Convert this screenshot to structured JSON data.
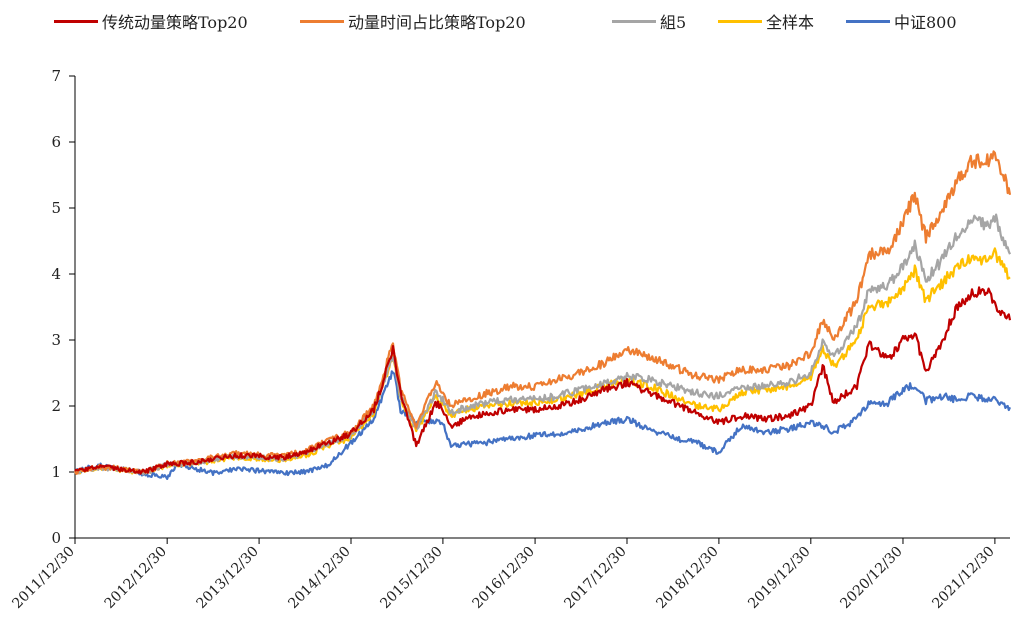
{
  "chart_data": {
    "type": "line",
    "title": "",
    "xlabel": "",
    "ylabel": "",
    "x_start": "2011/12/30",
    "x_end": "2022/02/28",
    "ylim": [
      0,
      7
    ],
    "yticks": [
      0,
      1,
      2,
      3,
      4,
      5,
      6,
      7
    ],
    "xticks": [
      "2011/12/30",
      "2012/12/30",
      "2013/12/30",
      "2014/12/30",
      "2015/12/30",
      "2016/12/30",
      "2017/12/30",
      "2018/12/30",
      "2019/12/30",
      "2020/12/30",
      "2021/12/30"
    ],
    "legend_position": "top",
    "grid": false,
    "series": [
      {
        "name": "传统动量策略Top20",
        "color": "#c00000",
        "points": [
          [
            "2011/12/30",
            1.0
          ],
          [
            "2012/03/31",
            1.08
          ],
          [
            "2012/06/30",
            1.04
          ],
          [
            "2012/09/30",
            1.0
          ],
          [
            "2012/12/30",
            1.12
          ],
          [
            "2013/03/31",
            1.14
          ],
          [
            "2013/06/30",
            1.2
          ],
          [
            "2013/09/30",
            1.25
          ],
          [
            "2013/12/30",
            1.24
          ],
          [
            "2014/03/31",
            1.22
          ],
          [
            "2014/06/30",
            1.3
          ],
          [
            "2014/09/30",
            1.45
          ],
          [
            "2014/12/30",
            1.58
          ],
          [
            "2015/03/31",
            1.95
          ],
          [
            "2015/06/15",
            2.85
          ],
          [
            "2015/07/15",
            2.2
          ],
          [
            "2015/09/15",
            1.4
          ],
          [
            "2015/11/30",
            2.05
          ],
          [
            "2015/12/30",
            1.95
          ],
          [
            "2016/01/31",
            1.7
          ],
          [
            "2016/03/31",
            1.8
          ],
          [
            "2016/06/30",
            1.9
          ],
          [
            "2016/09/30",
            1.95
          ],
          [
            "2016/12/30",
            1.95
          ],
          [
            "2017/03/31",
            2.0
          ],
          [
            "2017/06/30",
            2.1
          ],
          [
            "2017/09/30",
            2.25
          ],
          [
            "2017/12/30",
            2.35
          ],
          [
            "2018/03/31",
            2.2
          ],
          [
            "2018/06/30",
            2.05
          ],
          [
            "2018/09/30",
            1.9
          ],
          [
            "2018/12/30",
            1.75
          ],
          [
            "2019/03/31",
            1.85
          ],
          [
            "2019/06/30",
            1.8
          ],
          [
            "2019/09/30",
            1.85
          ],
          [
            "2019/12/30",
            2.0
          ],
          [
            "2020/02/15",
            2.6
          ],
          [
            "2020/03/31",
            2.05
          ],
          [
            "2020/06/30",
            2.3
          ],
          [
            "2020/08/15",
            2.95
          ],
          [
            "2020/10/31",
            2.7
          ],
          [
            "2020/12/30",
            3.0
          ],
          [
            "2021/02/15",
            3.1
          ],
          [
            "2021/03/31",
            2.5
          ],
          [
            "2021/05/31",
            2.95
          ],
          [
            "2021/07/31",
            3.5
          ],
          [
            "2021/09/30",
            3.7
          ],
          [
            "2021/11/30",
            3.75
          ],
          [
            "2021/12/30",
            3.55
          ],
          [
            "2022/02/28",
            3.3
          ]
        ]
      },
      {
        "name": "动量时间占比策略Top20",
        "color": "#ed7d31",
        "points": [
          [
            "2011/12/30",
            1.0
          ],
          [
            "2012/03/31",
            1.08
          ],
          [
            "2012/06/30",
            1.05
          ],
          [
            "2012/09/30",
            1.0
          ],
          [
            "2012/12/30",
            1.13
          ],
          [
            "2013/03/31",
            1.15
          ],
          [
            "2013/06/30",
            1.22
          ],
          [
            "2013/09/30",
            1.28
          ],
          [
            "2013/12/30",
            1.26
          ],
          [
            "2014/03/31",
            1.24
          ],
          [
            "2014/06/30",
            1.32
          ],
          [
            "2014/09/30",
            1.48
          ],
          [
            "2014/12/30",
            1.6
          ],
          [
            "2015/03/31",
            2.0
          ],
          [
            "2015/06/15",
            2.95
          ],
          [
            "2015/07/15",
            2.25
          ],
          [
            "2015/09/15",
            1.7
          ],
          [
            "2015/11/30",
            2.35
          ],
          [
            "2015/12/30",
            2.2
          ],
          [
            "2016/01/31",
            2.0
          ],
          [
            "2016/03/31",
            2.1
          ],
          [
            "2016/06/30",
            2.2
          ],
          [
            "2016/09/30",
            2.3
          ],
          [
            "2016/12/30",
            2.3
          ],
          [
            "2017/03/31",
            2.4
          ],
          [
            "2017/06/30",
            2.5
          ],
          [
            "2017/09/30",
            2.65
          ],
          [
            "2017/12/30",
            2.85
          ],
          [
            "2018/03/31",
            2.75
          ],
          [
            "2018/06/30",
            2.6
          ],
          [
            "2018/09/30",
            2.45
          ],
          [
            "2018/12/30",
            2.4
          ],
          [
            "2019/03/31",
            2.55
          ],
          [
            "2019/06/30",
            2.55
          ],
          [
            "2019/09/30",
            2.6
          ],
          [
            "2019/12/30",
            2.8
          ],
          [
            "2020/02/15",
            3.3
          ],
          [
            "2020/03/31",
            3.0
          ],
          [
            "2020/06/30",
            3.6
          ],
          [
            "2020/08/15",
            4.3
          ],
          [
            "2020/10/31",
            4.35
          ],
          [
            "2020/12/30",
            4.8
          ],
          [
            "2021/02/15",
            5.2
          ],
          [
            "2021/03/31",
            4.55
          ],
          [
            "2021/05/31",
            4.9
          ],
          [
            "2021/07/31",
            5.4
          ],
          [
            "2021/09/30",
            5.7
          ],
          [
            "2021/11/30",
            5.7
          ],
          [
            "2021/12/30",
            5.85
          ],
          [
            "2022/02/28",
            5.2
          ]
        ]
      },
      {
        "name": "組5",
        "color": "#a5a5a5",
        "points": [
          [
            "2011/12/30",
            1.0
          ],
          [
            "2012/03/31",
            1.07
          ],
          [
            "2012/06/30",
            1.04
          ],
          [
            "2012/09/30",
            0.99
          ],
          [
            "2012/12/30",
            1.12
          ],
          [
            "2013/03/31",
            1.13
          ],
          [
            "2013/06/30",
            1.19
          ],
          [
            "2013/09/30",
            1.24
          ],
          [
            "2013/12/30",
            1.22
          ],
          [
            "2014/03/31",
            1.2
          ],
          [
            "2014/06/30",
            1.28
          ],
          [
            "2014/09/30",
            1.44
          ],
          [
            "2014/12/30",
            1.55
          ],
          [
            "2015/03/31",
            1.95
          ],
          [
            "2015/06/15",
            2.8
          ],
          [
            "2015/07/15",
            2.15
          ],
          [
            "2015/09/15",
            1.65
          ],
          [
            "2015/11/30",
            2.2
          ],
          [
            "2015/12/30",
            2.1
          ],
          [
            "2016/01/31",
            1.9
          ],
          [
            "2016/03/31",
            1.98
          ],
          [
            "2016/06/30",
            2.05
          ],
          [
            "2016/09/30",
            2.1
          ],
          [
            "2016/12/30",
            2.1
          ],
          [
            "2017/03/31",
            2.15
          ],
          [
            "2017/06/30",
            2.25
          ],
          [
            "2017/09/30",
            2.35
          ],
          [
            "2017/12/30",
            2.45
          ],
          [
            "2018/03/31",
            2.4
          ],
          [
            "2018/06/30",
            2.3
          ],
          [
            "2018/09/30",
            2.2
          ],
          [
            "2018/12/30",
            2.15
          ],
          [
            "2019/03/31",
            2.3
          ],
          [
            "2019/06/30",
            2.3
          ],
          [
            "2019/09/30",
            2.35
          ],
          [
            "2019/12/30",
            2.5
          ],
          [
            "2020/02/15",
            3.0
          ],
          [
            "2020/03/31",
            2.75
          ],
          [
            "2020/06/30",
            3.2
          ],
          [
            "2020/08/15",
            3.75
          ],
          [
            "2020/10/31",
            3.85
          ],
          [
            "2020/12/30",
            4.1
          ],
          [
            "2021/02/15",
            4.45
          ],
          [
            "2021/03/31",
            3.9
          ],
          [
            "2021/05/31",
            4.2
          ],
          [
            "2021/07/31",
            4.6
          ],
          [
            "2021/09/30",
            4.8
          ],
          [
            "2021/11/30",
            4.75
          ],
          [
            "2021/12/30",
            4.85
          ],
          [
            "2022/02/28",
            4.3
          ]
        ]
      },
      {
        "name": "全样本",
        "color": "#ffc000",
        "points": [
          [
            "2011/12/30",
            1.0
          ],
          [
            "2012/03/31",
            1.06
          ],
          [
            "2012/06/30",
            1.03
          ],
          [
            "2012/09/30",
            0.99
          ],
          [
            "2012/12/30",
            1.1
          ],
          [
            "2013/03/31",
            1.12
          ],
          [
            "2013/06/30",
            1.17
          ],
          [
            "2013/09/30",
            1.22
          ],
          [
            "2013/12/30",
            1.2
          ],
          [
            "2014/03/31",
            1.18
          ],
          [
            "2014/06/30",
            1.25
          ],
          [
            "2014/09/30",
            1.4
          ],
          [
            "2014/12/30",
            1.52
          ],
          [
            "2015/03/31",
            1.9
          ],
          [
            "2015/06/15",
            2.75
          ],
          [
            "2015/07/15",
            2.1
          ],
          [
            "2015/09/15",
            1.6
          ],
          [
            "2015/11/30",
            2.15
          ],
          [
            "2015/12/30",
            2.05
          ],
          [
            "2016/01/31",
            1.85
          ],
          [
            "2016/03/31",
            1.95
          ],
          [
            "2016/06/30",
            2.0
          ],
          [
            "2016/09/30",
            2.05
          ],
          [
            "2016/12/30",
            2.05
          ],
          [
            "2017/03/31",
            2.1
          ],
          [
            "2017/06/30",
            2.2
          ],
          [
            "2017/09/30",
            2.3
          ],
          [
            "2017/12/30",
            2.4
          ],
          [
            "2018/03/31",
            2.3
          ],
          [
            "2018/06/30",
            2.15
          ],
          [
            "2018/09/30",
            2.0
          ],
          [
            "2018/12/30",
            1.95
          ],
          [
            "2019/03/31",
            2.2
          ],
          [
            "2019/06/30",
            2.25
          ],
          [
            "2019/09/30",
            2.3
          ],
          [
            "2019/12/30",
            2.45
          ],
          [
            "2020/02/15",
            2.85
          ],
          [
            "2020/03/31",
            2.6
          ],
          [
            "2020/06/30",
            3.0
          ],
          [
            "2020/08/15",
            3.5
          ],
          [
            "2020/10/31",
            3.55
          ],
          [
            "2020/12/30",
            3.8
          ],
          [
            "2021/02/15",
            4.05
          ],
          [
            "2021/03/31",
            3.6
          ],
          [
            "2021/05/31",
            3.85
          ],
          [
            "2021/07/31",
            4.1
          ],
          [
            "2021/09/30",
            4.25
          ],
          [
            "2021/11/30",
            4.2
          ],
          [
            "2021/12/30",
            4.3
          ],
          [
            "2022/02/28",
            3.95
          ]
        ]
      },
      {
        "name": "中证800",
        "color": "#4472c4",
        "points": [
          [
            "2011/12/30",
            1.0
          ],
          [
            "2012/03/31",
            1.1
          ],
          [
            "2012/06/30",
            1.05
          ],
          [
            "2012/09/30",
            0.97
          ],
          [
            "2012/12/30",
            0.92
          ],
          [
            "2013/02/15",
            1.12
          ],
          [
            "2013/06/30",
            0.98
          ],
          [
            "2013/09/30",
            1.05
          ],
          [
            "2013/12/30",
            1.02
          ],
          [
            "2014/03/31",
            0.98
          ],
          [
            "2014/06/30",
            1.0
          ],
          [
            "2014/09/30",
            1.1
          ],
          [
            "2014/12/30",
            1.45
          ],
          [
            "2015/03/31",
            1.8
          ],
          [
            "2015/06/15",
            2.55
          ],
          [
            "2015/07/15",
            1.95
          ],
          [
            "2015/09/15",
            1.75
          ],
          [
            "2015/11/30",
            1.78
          ],
          [
            "2015/12/30",
            1.72
          ],
          [
            "2016/01/31",
            1.38
          ],
          [
            "2016/03/31",
            1.42
          ],
          [
            "2016/06/30",
            1.45
          ],
          [
            "2016/09/30",
            1.5
          ],
          [
            "2016/12/30",
            1.55
          ],
          [
            "2017/03/31",
            1.58
          ],
          [
            "2017/06/30",
            1.65
          ],
          [
            "2017/09/30",
            1.75
          ],
          [
            "2017/12/30",
            1.8
          ],
          [
            "2018/03/31",
            1.65
          ],
          [
            "2018/06/30",
            1.52
          ],
          [
            "2018/09/30",
            1.45
          ],
          [
            "2018/12/30",
            1.3
          ],
          [
            "2019/03/31",
            1.7
          ],
          [
            "2019/06/30",
            1.6
          ],
          [
            "2019/09/30",
            1.65
          ],
          [
            "2019/12/30",
            1.75
          ],
          [
            "2020/02/15",
            1.7
          ],
          [
            "2020/03/31",
            1.6
          ],
          [
            "2020/06/30",
            1.8
          ],
          [
            "2020/08/15",
            2.05
          ],
          [
            "2020/10/31",
            2.05
          ],
          [
            "2020/12/30",
            2.25
          ],
          [
            "2021/02/15",
            2.32
          ],
          [
            "2021/03/31",
            2.08
          ],
          [
            "2021/05/31",
            2.15
          ],
          [
            "2021/07/31",
            2.1
          ],
          [
            "2021/09/30",
            2.15
          ],
          [
            "2021/11/30",
            2.1
          ],
          [
            "2021/12/30",
            2.1
          ],
          [
            "2022/02/28",
            1.98
          ]
        ]
      }
    ]
  }
}
